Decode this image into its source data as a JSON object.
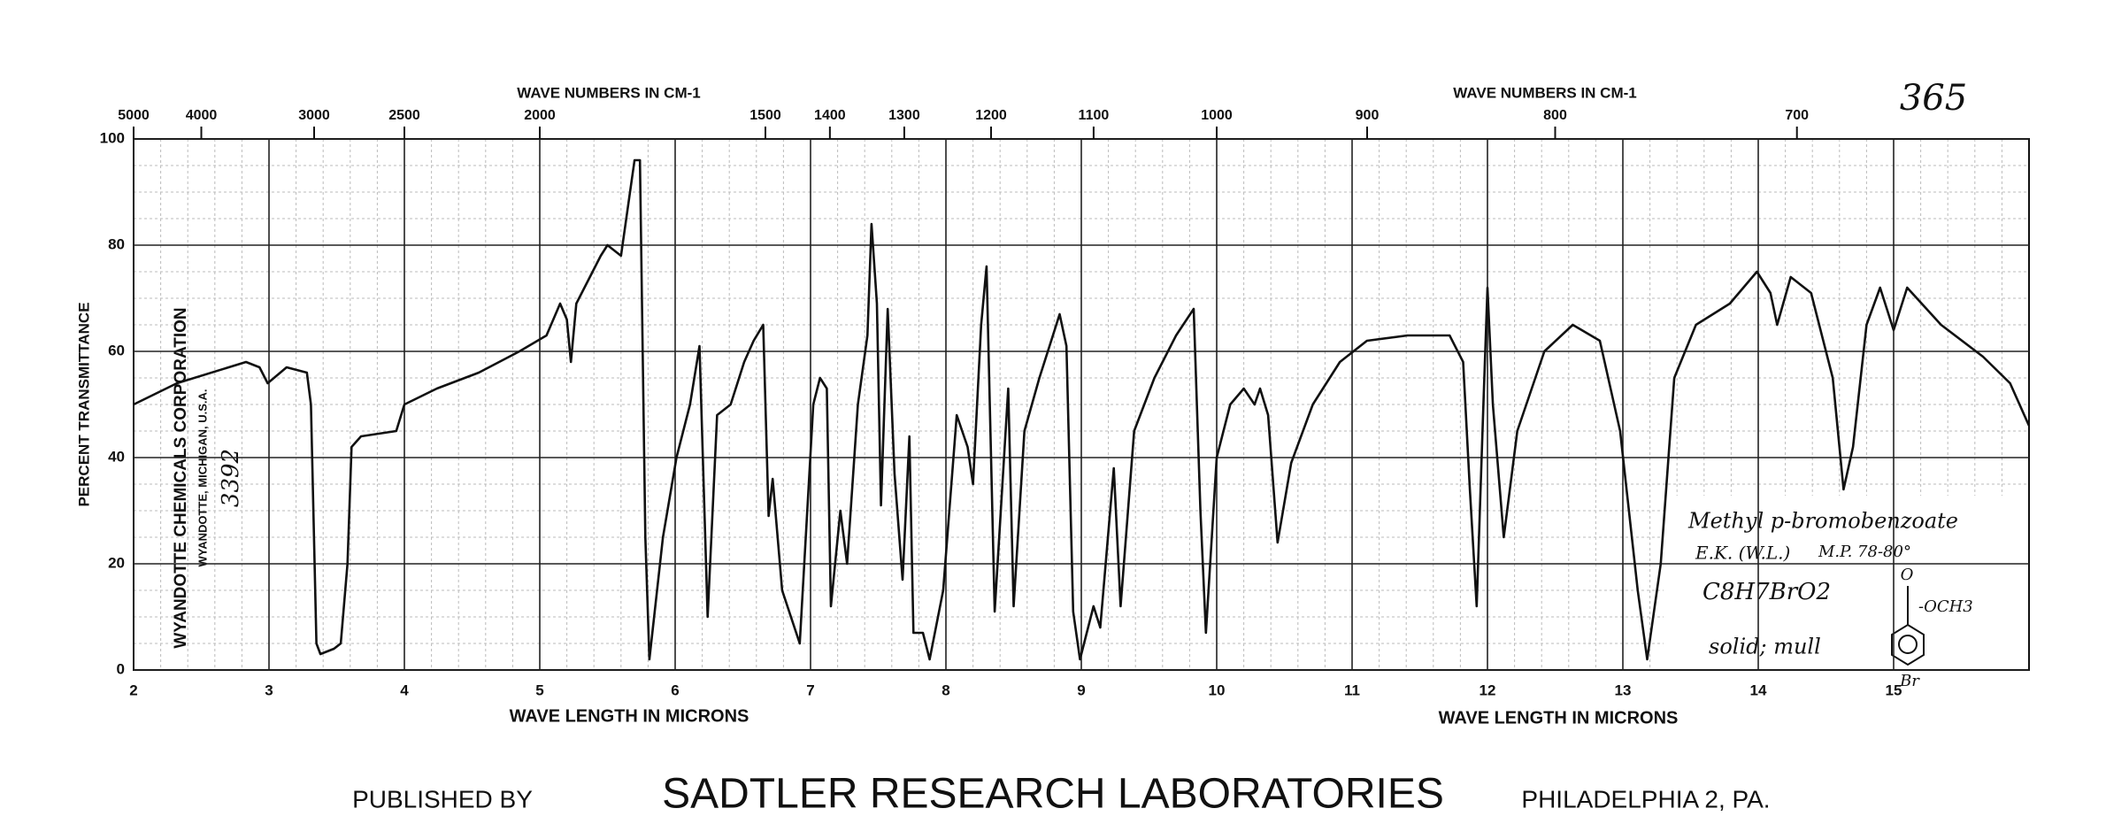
{
  "chart_data": {
    "type": "line",
    "top_axis_label": "WAVE NUMBERS IN CM-1",
    "top_axis_label_2": "WAVE NUMBERS IN CM-1",
    "spectrum_number": "365",
    "ylabel": "PERCENT TRANSMITTANCE",
    "xlabel": "WAVE LENGTH IN MICRONS",
    "xlabel_2": "WAVE LENGTH IN MICRONS",
    "source_lines": [
      "WYANDOTTE CHEMICALS CORPORATION",
      "WYANDOTTE, MICHIGAN, U.S.A.",
      "3392"
    ],
    "annotations": {
      "compound": "Methyl p-bromobenzoate",
      "sample": "E.K. (W.L.)",
      "melting_point": "M.P. 78-80°",
      "formula": "C8H7BrO2",
      "state": "solid; mull",
      "structure_oxygen": "O",
      "structure_group": "-OCH3",
      "structure_substituent": "Br"
    },
    "footer": {
      "prefix": "PUBLISHED BY",
      "publisher": "SADTLER RESEARCH LABORATORIES",
      "city": "PHILADELPHIA 2, PA."
    },
    "color": "#111111",
    "grid": true,
    "xlim": [
      2,
      16
    ],
    "ylim": [
      0,
      100
    ],
    "xticks": [
      2,
      3,
      4,
      5,
      6,
      7,
      8,
      9,
      10,
      11,
      12,
      13,
      14,
      15
    ],
    "yticks": [
      0,
      20,
      40,
      60,
      80,
      100
    ],
    "top_ticks": [
      5000,
      4000,
      3000,
      2500,
      2000,
      1500,
      1400,
      1300,
      1200,
      1100,
      1000,
      900,
      800,
      700
    ],
    "x": [
      2.0,
      2.32,
      2.83,
      2.93,
      2.99,
      3.13,
      3.28,
      3.31,
      3.35,
      3.38,
      3.48,
      3.53,
      3.58,
      3.61,
      3.68,
      3.94,
      4.0,
      4.24,
      4.55,
      4.85,
      5.05,
      5.15,
      5.2,
      5.23,
      5.27,
      5.45,
      5.5,
      5.6,
      5.7,
      5.74,
      5.78,
      5.81,
      5.91,
      6.01,
      6.11,
      6.18,
      6.24,
      6.31,
      6.41,
      6.51,
      6.58,
      6.65,
      6.69,
      6.72,
      6.79,
      6.92,
      7.02,
      7.07,
      7.12,
      7.15,
      7.22,
      7.27,
      7.35,
      7.42,
      7.45,
      7.49,
      7.52,
      7.57,
      7.62,
      7.68,
      7.73,
      7.76,
      7.83,
      7.88,
      7.98,
      8.08,
      8.16,
      8.2,
      8.26,
      8.3,
      8.36,
      8.46,
      8.5,
      8.58,
      8.69,
      8.79,
      8.84,
      8.89,
      8.94,
      8.99,
      9.09,
      9.14,
      9.24,
      9.29,
      9.39,
      9.54,
      9.7,
      9.83,
      9.88,
      9.92,
      10.0,
      10.1,
      10.2,
      10.28,
      10.32,
      10.38,
      10.45,
      10.55,
      10.71,
      10.91,
      11.11,
      11.41,
      11.72,
      11.82,
      11.87,
      11.92,
      11.97,
      12.0,
      12.04,
      12.12,
      12.22,
      12.42,
      12.63,
      12.83,
      12.98,
      13.11,
      13.18,
      13.28,
      13.38,
      13.54,
      13.79,
      13.99,
      14.09,
      14.14,
      14.24,
      14.39,
      14.55,
      14.63,
      14.7,
      14.8,
      14.9,
      15.0,
      15.1,
      15.35,
      15.66,
      15.86,
      16.0
    ],
    "values": [
      50,
      54,
      58,
      57,
      54,
      57,
      56,
      50,
      5,
      3,
      4,
      5,
      20,
      42,
      44,
      45,
      50,
      53,
      56,
      60,
      63,
      69,
      66,
      58,
      69,
      78,
      80,
      78,
      96,
      96,
      25,
      2,
      25,
      40,
      50,
      61,
      10,
      48,
      50,
      58,
      62,
      65,
      29,
      36,
      15,
      5,
      50,
      55,
      53,
      12,
      30,
      20,
      50,
      63,
      84,
      69,
      31,
      68,
      37,
      17,
      44,
      7,
      7,
      2,
      15,
      48,
      42,
      35,
      65,
      76,
      11,
      53,
      12,
      45,
      55,
      63,
      67,
      61,
      11,
      2,
      12,
      8,
      38,
      12,
      45,
      55,
      63,
      68,
      30,
      7,
      40,
      50,
      53,
      50,
      53,
      48,
      24,
      39,
      50,
      58,
      62,
      63,
      63,
      58,
      34,
      12,
      50,
      72,
      50,
      25,
      45,
      60,
      65,
      62,
      45,
      15,
      2,
      20,
      55,
      65,
      69,
      75,
      71,
      65,
      74,
      71,
      55,
      34,
      42,
      65,
      72,
      64,
      72,
      65,
      59,
      54,
      46
    ]
  }
}
